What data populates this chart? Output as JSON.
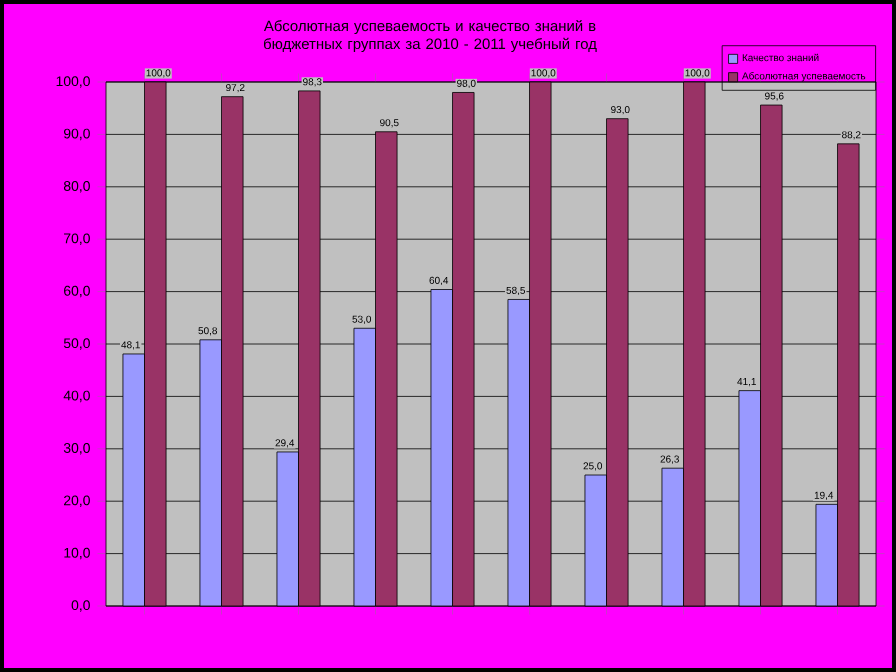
{
  "chart_data": {
    "type": "bar",
    "title": "Абсолютная успеваемость и качество знаний в бюджетных группах за  2010 - 2011 учебный год",
    "categories": [
      null,
      null,
      null,
      null,
      null,
      null,
      null,
      null,
      null,
      null
    ],
    "series": [
      {
        "name": "Качество знаний",
        "color": "#9999ff",
        "values": [
          48.1,
          50.8,
          29.4,
          53.0,
          60.4,
          58.5,
          25.0,
          26.3,
          41.1,
          19.4
        ],
        "value_labels": [
          "48,1",
          "50,8",
          "29,4",
          "53,0",
          "60,4",
          "58,5",
          "25,0",
          "26,3",
          "41,1",
          "19,4"
        ]
      },
      {
        "name": "Абсолютная успеваемость",
        "color": "#993366",
        "values": [
          100.0,
          97.2,
          98.3,
          90.5,
          98.0,
          100.0,
          93.0,
          100.0,
          95.6,
          88.2
        ],
        "value_labels": [
          "100,0",
          "97,2",
          "98,3",
          "90,5",
          "98,0",
          "100,0",
          "93,0",
          "100,0",
          "95,6",
          "88,2"
        ]
      }
    ],
    "ylim": [
      0,
      100
    ],
    "yticks": [
      {
        "value": 0,
        "label": "0,0"
      },
      {
        "value": 10,
        "label": "10,0"
      },
      {
        "value": 20,
        "label": "20,0"
      },
      {
        "value": 30,
        "label": "30,0"
      },
      {
        "value": 40,
        "label": "40,0"
      },
      {
        "value": 50,
        "label": "50,0"
      },
      {
        "value": 60,
        "label": "60,0"
      },
      {
        "value": 70,
        "label": "70,0"
      },
      {
        "value": 80,
        "label": "80,0"
      },
      {
        "value": 90,
        "label": "90,0"
      },
      {
        "value": 100,
        "label": "100,0"
      }
    ],
    "grid": "y",
    "legend": "top right"
  }
}
